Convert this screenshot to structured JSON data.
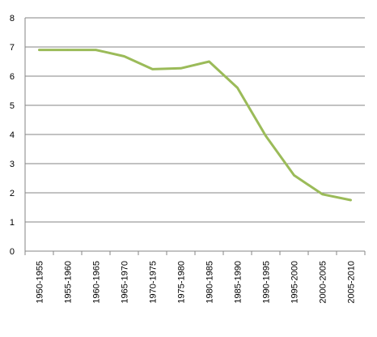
{
  "chart_data": {
    "type": "line",
    "title": "",
    "xlabel": "",
    "ylabel": "",
    "categories": [
      "1950-1955",
      "1955-1960",
      "1960-1965",
      "1965-1970",
      "1970-1975",
      "1975-1980",
      "1980-1985",
      "1985-1990",
      "1990-1995",
      "1995-2000",
      "2000-2005",
      "2005-2010"
    ],
    "series": [
      {
        "values": [
          6.9,
          6.9,
          6.9,
          6.68,
          6.24,
          6.27,
          6.5,
          5.6,
          3.95,
          2.6,
          1.95,
          1.75
        ],
        "color": "#9BBB59"
      }
    ],
    "ylim": [
      0,
      8
    ],
    "yticks": [
      "0",
      "1",
      "2",
      "3",
      "4",
      "5",
      "6",
      "7",
      "8"
    ],
    "grid": true,
    "legend": "none"
  }
}
